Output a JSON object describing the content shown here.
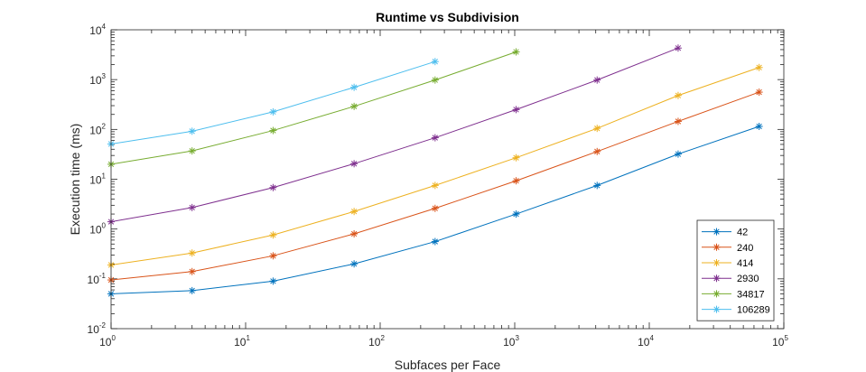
{
  "chart_data": {
    "type": "line",
    "title": "Runtime vs Subdivision",
    "xlabel": "Subfaces per Face",
    "ylabel": "Execution time (ms)",
    "x_scale": "log",
    "y_scale": "log",
    "xlim": [
      1,
      100000
    ],
    "ylim": [
      0.01,
      10000
    ],
    "x_ticks": [
      {
        "base": "10",
        "exp": "0",
        "value": 1
      },
      {
        "base": "10",
        "exp": "1",
        "value": 10
      },
      {
        "base": "10",
        "exp": "2",
        "value": 100
      },
      {
        "base": "10",
        "exp": "3",
        "value": 1000
      },
      {
        "base": "10",
        "exp": "4",
        "value": 10000
      },
      {
        "base": "10",
        "exp": "5",
        "value": 100000
      }
    ],
    "y_ticks": [
      {
        "base": "10",
        "exp": "-2",
        "value": 0.01
      },
      {
        "base": "10",
        "exp": "-1",
        "value": 0.1
      },
      {
        "base": "10",
        "exp": "0",
        "value": 1
      },
      {
        "base": "10",
        "exp": "1",
        "value": 10
      },
      {
        "base": "10",
        "exp": "2",
        "value": 100
      },
      {
        "base": "10",
        "exp": "3",
        "value": 1000
      },
      {
        "base": "10",
        "exp": "4",
        "value": 10000
      }
    ],
    "grid": false,
    "legend_position": "bottom-right",
    "marker": "asterisk",
    "series": [
      {
        "name": "42",
        "color": "#0072BD",
        "x": [
          1,
          4,
          16,
          64,
          256,
          1024,
          4096,
          16384,
          65536
        ],
        "y": [
          0.05,
          0.058,
          0.09,
          0.2,
          0.56,
          2.0,
          7.5,
          32,
          115
        ]
      },
      {
        "name": "240",
        "color": "#D95319",
        "x": [
          1,
          4,
          16,
          64,
          256,
          1024,
          4096,
          16384,
          65536
        ],
        "y": [
          0.095,
          0.14,
          0.29,
          0.8,
          2.6,
          9.3,
          36,
          145,
          560
        ]
      },
      {
        "name": "414",
        "color": "#EDB120",
        "x": [
          1,
          4,
          16,
          64,
          256,
          1024,
          4096,
          16384,
          65536
        ],
        "y": [
          0.19,
          0.33,
          0.76,
          2.25,
          7.5,
          27,
          105,
          480,
          1750
        ]
      },
      {
        "name": "2930",
        "color": "#7E2F8E",
        "x": [
          1,
          4,
          16,
          64,
          256,
          1024,
          4096,
          16384
        ],
        "y": [
          1.4,
          2.7,
          6.8,
          20.5,
          68,
          250,
          980,
          4300
        ]
      },
      {
        "name": "34817",
        "color": "#77AC30",
        "x": [
          1,
          4,
          16,
          64,
          256,
          1024
        ],
        "y": [
          20,
          37,
          95,
          290,
          980,
          3600
        ]
      },
      {
        "name": "106289",
        "color": "#4DBEEE",
        "x": [
          1,
          4,
          16,
          64,
          256
        ],
        "y": [
          51,
          92,
          225,
          700,
          2300
        ]
      }
    ]
  }
}
